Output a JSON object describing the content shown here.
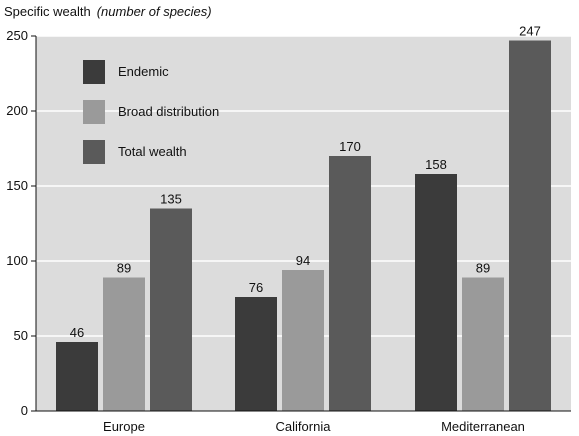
{
  "chart_data": {
    "type": "bar",
    "title": "Specific wealth",
    "subtitle": "(number of species)",
    "xlabel": "",
    "ylabel": "",
    "ylim": [
      0,
      250
    ],
    "yticks": [
      "0",
      "50",
      "100",
      "150",
      "200",
      "250"
    ],
    "grid": "horizontal",
    "legend_placement": "top-left",
    "categories": [
      "Europe",
      "California",
      "Mediterranean"
    ],
    "series": [
      {
        "name": "Endemic",
        "values": [
          46,
          76,
          158
        ],
        "color": "#3b3b3b"
      },
      {
        "name": "Broad distribution",
        "values": [
          89,
          94,
          89
        ],
        "color": "#9a9a9a"
      },
      {
        "name": "Total wealth",
        "values": [
          135,
          170,
          247
        ],
        "color": "#5a5a5a"
      }
    ],
    "background": "#dcdcdc"
  }
}
